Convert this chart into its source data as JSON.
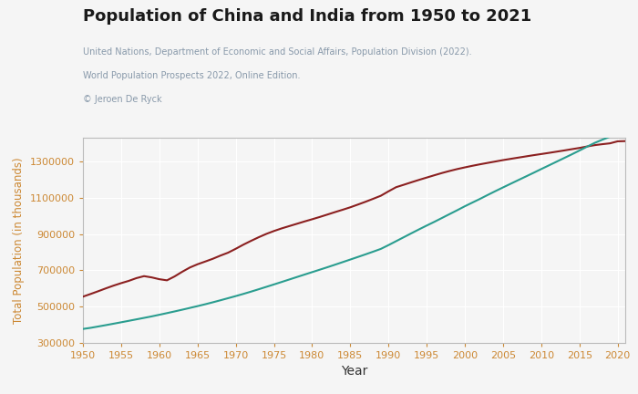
{
  "title": "Population of China and India from 1950 to 2021",
  "subtitle_line1": "United Nations, Department of Economic and Social Affairs, Population Division (2022).",
  "subtitle_line2": "World Population Prospects 2022, Online Edition.",
  "subtitle_line3": "© Jeroen De Ryck",
  "xlabel": "Year",
  "ylabel": "Total Population (in thousands)",
  "title_color": "#1a1a1a",
  "subtitle_color": "#8899aa",
  "ylabel_color": "#cc8833",
  "xlabel_color": "#333333",
  "tick_color": "#cc8833",
  "china_color": "#8b2020",
  "india_color": "#2a9d8f",
  "bg_color": "#f5f5f5",
  "grid_color": "#ffffff",
  "years": [
    1950,
    1951,
    1952,
    1953,
    1954,
    1955,
    1956,
    1957,
    1958,
    1959,
    1960,
    1961,
    1962,
    1963,
    1964,
    1965,
    1966,
    1967,
    1968,
    1969,
    1970,
    1971,
    1972,
    1973,
    1974,
    1975,
    1976,
    1977,
    1978,
    1979,
    1980,
    1981,
    1982,
    1983,
    1984,
    1985,
    1986,
    1987,
    1988,
    1989,
    1990,
    1991,
    1992,
    1993,
    1994,
    1995,
    1996,
    1997,
    1998,
    1999,
    2000,
    2001,
    2002,
    2003,
    2004,
    2005,
    2006,
    2007,
    2008,
    2009,
    2010,
    2011,
    2012,
    2013,
    2014,
    2015,
    2016,
    2017,
    2018,
    2019,
    2020,
    2021
  ],
  "china": [
    554419,
    569121,
    584411,
    600178,
    615184,
    628910,
    641490,
    656630,
    667629,
    660622,
    650680,
    644450,
    666002,
    691774,
    715185,
    733008,
    747950,
    763264,
    780850,
    796950,
    818315,
    841105,
    862030,
    881940,
    900350,
    916395,
    930685,
    943455,
    956165,
    969005,
    981235,
    993885,
    1007180,
    1020690,
    1033750,
    1047235,
    1062380,
    1077845,
    1094215,
    1110960,
    1135185,
    1158230,
    1171486,
    1185170,
    1198500,
    1211210,
    1223890,
    1236270,
    1247610,
    1258090,
    1267430,
    1276270,
    1284530,
    1292270,
    1299880,
    1307560,
    1314480,
    1321290,
    1328020,
    1334740,
    1340970,
    1347380,
    1354040,
    1360720,
    1367820,
    1374620,
    1382710,
    1390080,
    1395380,
    1400050,
    1411100,
    1412360
  ],
  "india": [
    376325,
    382390,
    389847,
    397389,
    405196,
    413056,
    421097,
    429229,
    437314,
    445580,
    454531,
    463633,
    472929,
    482455,
    492303,
    502182,
    512418,
    523213,
    534427,
    545944,
    557501,
    569547,
    582085,
    595086,
    608341,
    621703,
    635226,
    648812,
    662490,
    676082,
    689592,
    703085,
    716682,
    730638,
    744811,
    759057,
    773374,
    787788,
    802664,
    817810,
    838584,
    860383,
    882142,
    903961,
    925518,
    946418,
    966932,
    988278,
    1009751,
    1031101,
    1052993,
    1073576,
    1094026,
    1115440,
    1136490,
    1156897,
    1177120,
    1197330,
    1217399,
    1237527,
    1258151,
    1278304,
    1298607,
    1318940,
    1339260,
    1360263,
    1381645,
    1402513,
    1420018,
    1436688,
    1449734,
    1460000
  ]
}
